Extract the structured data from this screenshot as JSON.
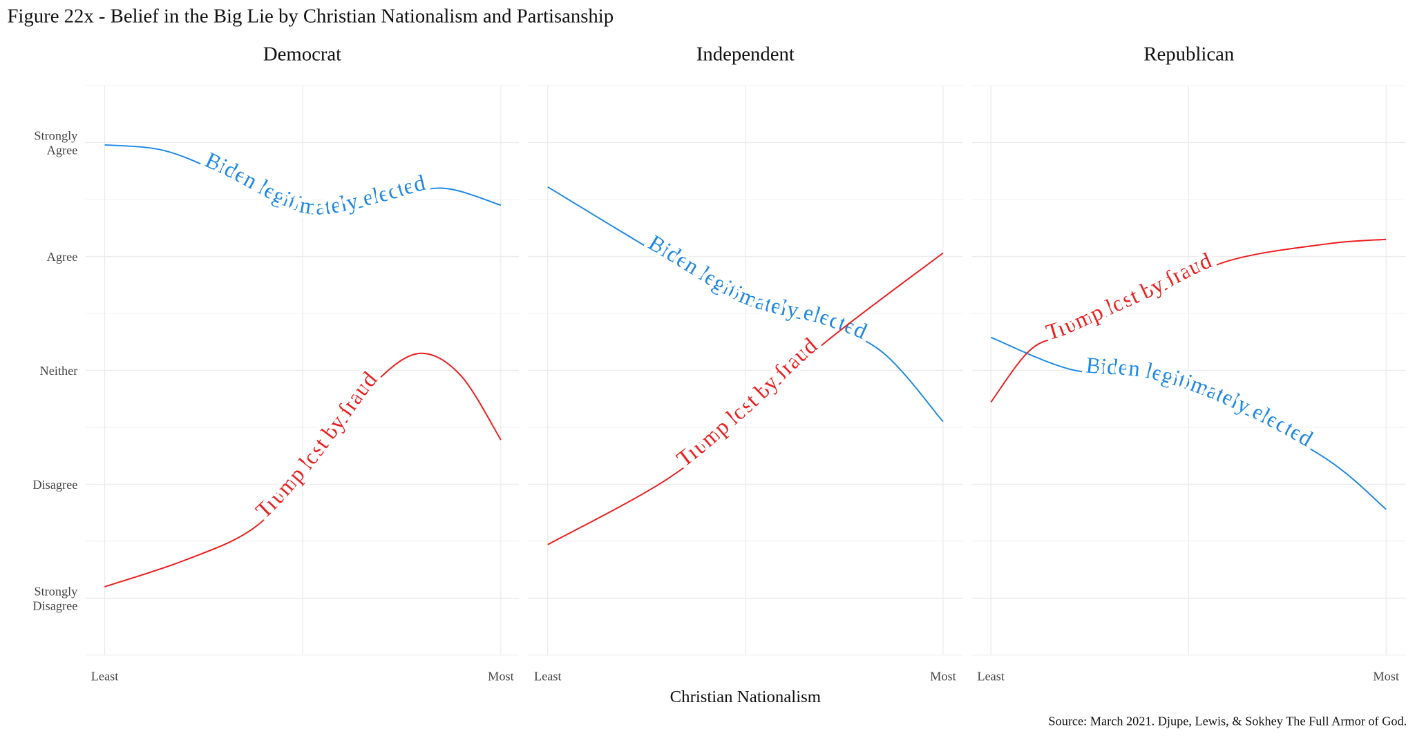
{
  "chart_data": {
    "type": "line",
    "title": "Figure 22x - Belief in the Big Lie by Christian Nationalism and Partisanship",
    "xlabel": "Christian Nationalism",
    "ylabel": "",
    "caption": "Source: March 2021. Djupe, Lewis, & Sokhey The Full Armor of God.",
    "x_ticks": [
      "Least",
      "Most"
    ],
    "y_ticks": [
      {
        "value": 5,
        "label": [
          "Strongly",
          "Agree"
        ]
      },
      {
        "value": 4,
        "label": [
          "Agree"
        ]
      },
      {
        "value": 3,
        "label": [
          "Neither"
        ]
      },
      {
        "value": 2,
        "label": [
          "Disagree"
        ]
      },
      {
        "value": 1,
        "label": [
          "Strongly",
          "Disagree"
        ]
      }
    ],
    "xlim": [
      0,
      1
    ],
    "ylim": [
      0.5,
      5.5
    ],
    "grid": true,
    "legend": "none (direct labels on lines)",
    "colors": {
      "biden": "#1a86e8",
      "trump": "#ee1c1c"
    },
    "panels": [
      {
        "name": "Democrat",
        "series": [
          {
            "name": "Biden legitimately elected",
            "key": "biden",
            "label_pos": 0.53,
            "x": [
              0,
              0.15,
              0.3,
              0.45,
              0.55,
              0.7,
              0.85,
              1
            ],
            "y": [
              4.98,
              4.93,
              4.72,
              4.45,
              4.37,
              4.48,
              4.6,
              4.45
            ]
          },
          {
            "name": "Trump lost by fraud",
            "key": "trump",
            "label_pos": 0.5,
            "x": [
              0,
              0.2,
              0.37,
              0.5,
              0.6,
              0.7,
              0.8,
              0.9,
              1
            ],
            "y": [
              1.1,
              1.33,
              1.6,
              2.05,
              2.5,
              2.95,
              3.15,
              2.95,
              2.39
            ]
          }
        ]
      },
      {
        "name": "Independent",
        "series": [
          {
            "name": "Biden legitimately elected",
            "key": "biden",
            "label_pos": 0.5,
            "x": [
              0,
              0.3,
              0.5,
              0.7,
              0.85,
              1
            ],
            "y": [
              4.61,
              3.98,
              3.58,
              3.4,
              3.15,
              2.55
            ]
          },
          {
            "name": "Trump lost by fraud",
            "key": "trump",
            "label_pos": 0.5,
            "x": [
              0,
              0.3,
              0.5,
              0.7,
              1
            ],
            "y": [
              1.47,
              2.04,
              2.6,
              3.24,
              4.03
            ]
          }
        ]
      },
      {
        "name": "Republican",
        "series": [
          {
            "name": "Biden legitimately elected",
            "key": "biden",
            "label_pos": 0.5,
            "x": [
              0,
              0.2,
              0.4,
              0.6,
              0.85,
              1
            ],
            "y": [
              3.29,
              3.01,
              2.93,
              2.69,
              2.22,
              1.78
            ]
          },
          {
            "name": "Trump lost by fraud",
            "key": "trump",
            "label_pos": 0.4,
            "x": [
              0,
              0.1,
              0.2,
              0.4,
              0.6,
              0.85,
              1
            ],
            "y": [
              2.72,
              3.18,
              3.33,
              3.64,
              3.96,
              4.11,
              4.15
            ]
          }
        ]
      }
    ]
  }
}
